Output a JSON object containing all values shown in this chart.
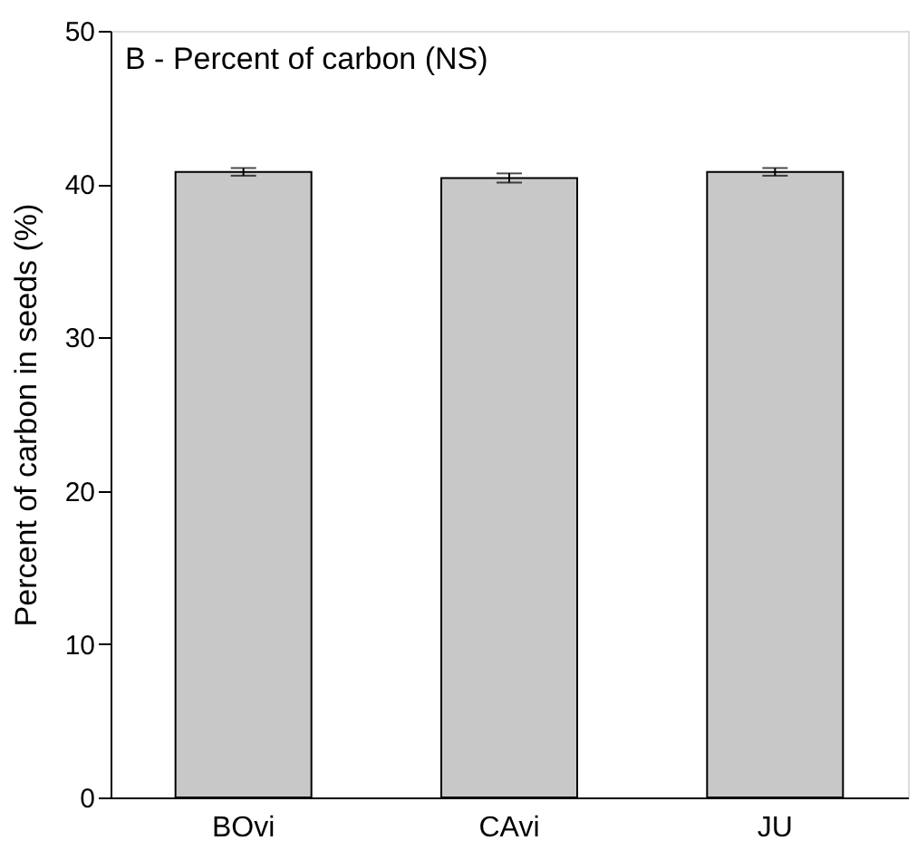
{
  "chart_data": {
    "type": "bar",
    "title": "B - Percent of carbon (NS)",
    "ylabel": "Percent of carbon in seeds (%)",
    "categories": [
      "BOvi",
      "CAvi",
      "JU"
    ],
    "values": [
      40.8,
      40.4,
      40.8
    ],
    "errors": [
      0.25,
      0.3,
      0.25
    ],
    "color": "#c8c8c8",
    "ylim": [
      0,
      50
    ],
    "yticks": [
      0,
      10,
      20,
      30,
      40,
      50
    ],
    "grid": false
  }
}
